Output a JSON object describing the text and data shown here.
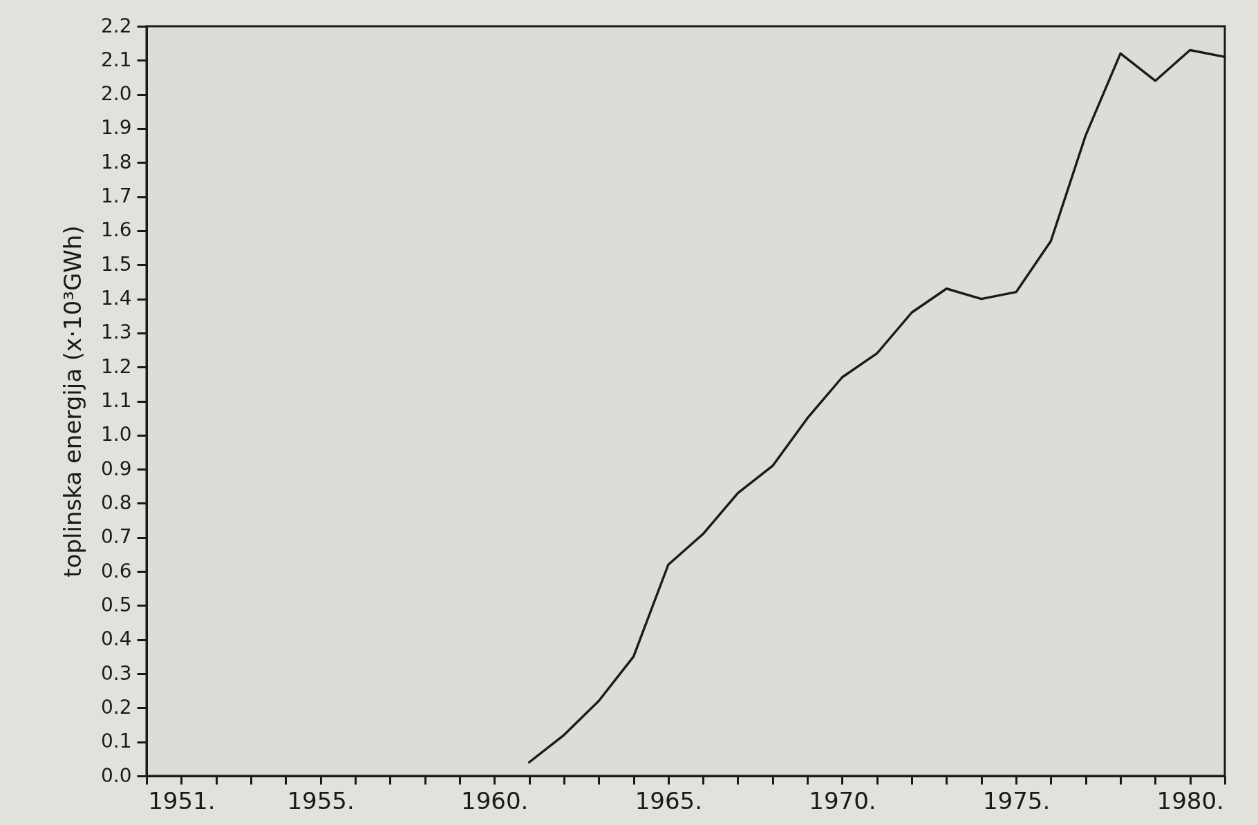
{
  "chart_data": {
    "type": "line",
    "ylabel": "toplinska energija (x·10³GWh)",
    "x": [
      1961,
      1962,
      1963,
      1964,
      1965,
      1966,
      1967,
      1968,
      1969,
      1970,
      1971,
      1972,
      1973,
      1974,
      1975,
      1976,
      1977,
      1978,
      1979,
      1980,
      1981
    ],
    "series": [
      {
        "color": "#1a1a1a",
        "values": [
          0.04,
          0.12,
          0.22,
          0.35,
          0.62,
          0.71,
          0.83,
          0.91,
          1.05,
          1.17,
          1.24,
          1.36,
          1.43,
          1.4,
          1.42,
          1.57,
          1.88,
          2.12,
          2.04,
          2.13,
          2.11
        ]
      }
    ],
    "xlim": [
      1950,
      1981
    ],
    "xticks": [
      {
        "value": 1950,
        "label": null
      },
      {
        "value": 1951,
        "label": "1951."
      },
      {
        "value": 1952,
        "label": null
      },
      {
        "value": 1953,
        "label": null
      },
      {
        "value": 1954,
        "label": null
      },
      {
        "value": 1955,
        "label": "1955."
      },
      {
        "value": 1956,
        "label": null
      },
      {
        "value": 1957,
        "label": null
      },
      {
        "value": 1958,
        "label": null
      },
      {
        "value": 1959,
        "label": null
      },
      {
        "value": 1960,
        "label": "1960."
      },
      {
        "value": 1961,
        "label": null
      },
      {
        "value": 1962,
        "label": null
      },
      {
        "value": 1963,
        "label": null
      },
      {
        "value": 1964,
        "label": null
      },
      {
        "value": 1965,
        "label": "1965."
      },
      {
        "value": 1966,
        "label": null
      },
      {
        "value": 1967,
        "label": null
      },
      {
        "value": 1968,
        "label": null
      },
      {
        "value": 1969,
        "label": null
      },
      {
        "value": 1970,
        "label": "1970."
      },
      {
        "value": 1971,
        "label": null
      },
      {
        "value": 1972,
        "label": null
      },
      {
        "value": 1973,
        "label": null
      },
      {
        "value": 1974,
        "label": null
      },
      {
        "value": 1975,
        "label": "1975."
      },
      {
        "value": 1976,
        "label": null
      },
      {
        "value": 1977,
        "label": null
      },
      {
        "value": 1978,
        "label": null
      },
      {
        "value": 1979,
        "label": null
      },
      {
        "value": 1980,
        "label": "1980."
      },
      {
        "value": 1981,
        "label": null
      }
    ],
    "ylim": [
      0,
      2.2
    ],
    "yticks": [
      {
        "value": 0,
        "label": "0.0"
      },
      0.1,
      0.2,
      0.3,
      0.4,
      0.5,
      0.6,
      0.7,
      0.8,
      0.9,
      {
        "value": 1,
        "label": "1.0"
      },
      1.1,
      1.2,
      1.3,
      1.4,
      1.5,
      1.6,
      1.7,
      1.8,
      1.9,
      {
        "value": 2,
        "label": "2.0"
      },
      2.1,
      2.2
    ],
    "grid": false,
    "marker": "none",
    "line_style": "solid"
  }
}
